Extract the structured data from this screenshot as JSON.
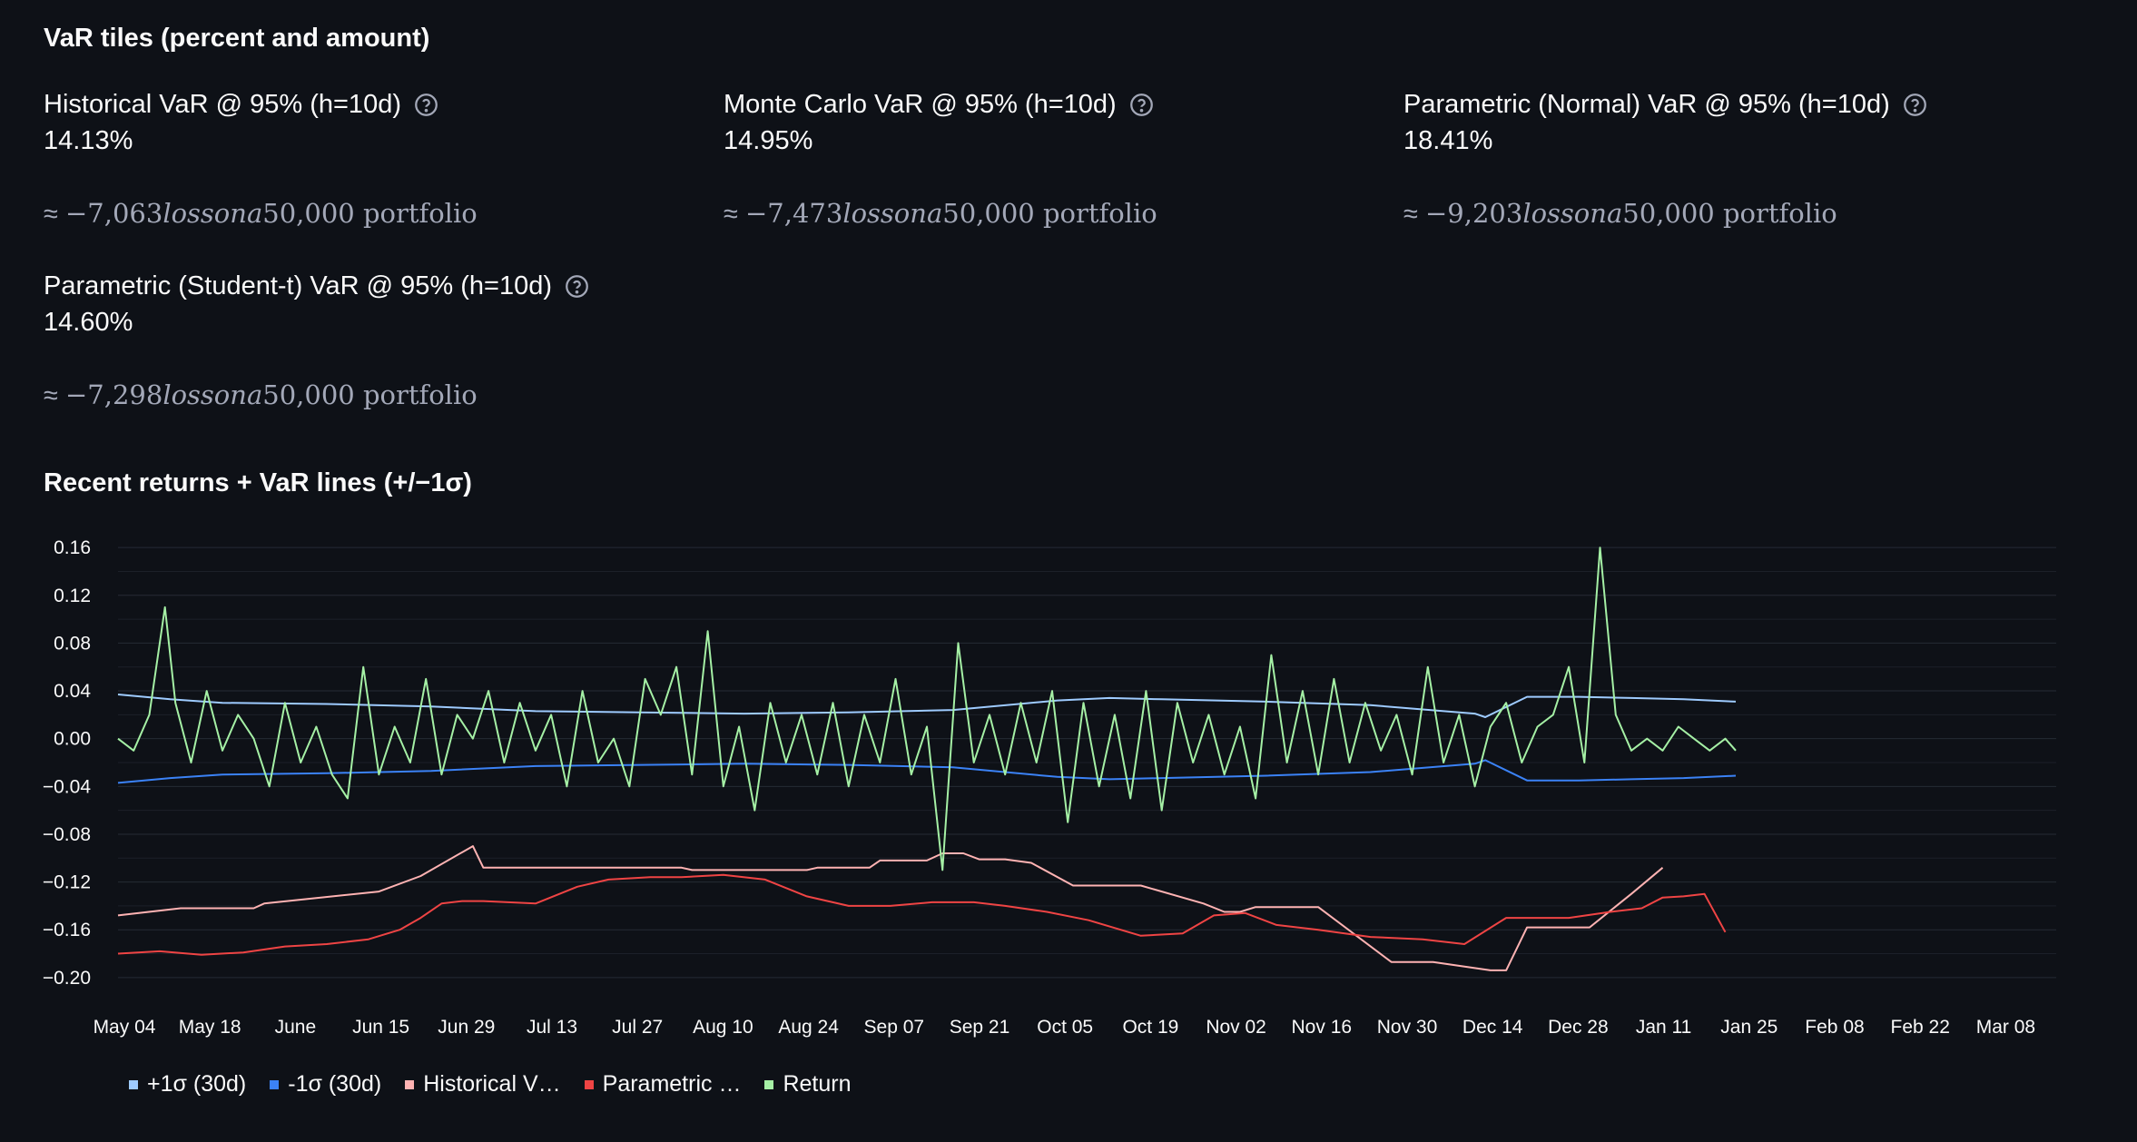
{
  "page": {
    "tiles_title": "VaR tiles (percent and amount)",
    "chart_title": "Recent returns + VaR lines (+/−1σ)"
  },
  "tiles": [
    {
      "label": "Historical VaR @ 95% (h=10d)",
      "value": "14.13%",
      "caption_prefix": "≈ ",
      "caption_math": "−7,063",
      "caption_italic": "lossona",
      "caption_suffix": "50,000 portfolio",
      "icon": "help-circle-icon"
    },
    {
      "label": "Monte Carlo VaR @ 95% (h=10d)",
      "value": "14.95%",
      "caption_prefix": "≈ ",
      "caption_math": "−7,473",
      "caption_italic": "lossona",
      "caption_suffix": "50,000 portfolio",
      "icon": "help-circle-icon"
    },
    {
      "label": "Parametric (Normal) VaR @ 95% (h=10d)",
      "value": "18.41%",
      "caption_prefix": "≈ ",
      "caption_math": "−9,203",
      "caption_italic": "lossona",
      "caption_suffix": "50,000 portfolio",
      "icon": "help-circle-icon"
    },
    {
      "label": "Parametric (Student-t) VaR @ 95% (h=10d)",
      "value": "14.60%",
      "caption_prefix": "≈ ",
      "caption_math": "−7,298",
      "caption_italic": "lossona",
      "caption_suffix": "50,000 portfolio",
      "icon": "help-circle-icon"
    }
  ],
  "chart_data": {
    "type": "line",
    "title": "",
    "xlabel": "",
    "ylabel": "",
    "x_ticks": [
      "May 04",
      "May 18",
      "June",
      "Jun 15",
      "Jun 29",
      "Jul 13",
      "Jul 27",
      "Aug 10",
      "Aug 24",
      "Sep 07",
      "Sep 21",
      "Oct 05",
      "Oct 19",
      "Nov 02",
      "Nov 16",
      "Nov 30",
      "Dec 14",
      "Dec 28",
      "Jan 11",
      "Jan 25",
      "Feb 08",
      "Feb 22",
      "Mar 08"
    ],
    "y_ticks": [
      "0.16",
      "0.12",
      "0.08",
      "0.04",
      "0.00",
      "−0.04",
      "−0.08",
      "−0.12",
      "−0.16",
      "−0.20"
    ],
    "y_tick_values": [
      0.16,
      0.12,
      0.08,
      0.04,
      0.0,
      -0.04,
      -0.08,
      -0.12,
      -0.16,
      -0.2
    ],
    "ylim": [
      -0.21,
      0.17
    ],
    "x_domain": [
      0,
      310
    ],
    "grid": true,
    "legend_position": "bottom-left",
    "series": [
      {
        "name": "+1σ (30d)",
        "legend_label": "+1σ (30d)",
        "color": "#9ecbff",
        "x": [
          0,
          10,
          20,
          40,
          60,
          80,
          100,
          120,
          140,
          160,
          180,
          190,
          200,
          220,
          240,
          260,
          262,
          270,
          280,
          290,
          300,
          310
        ],
        "values": [
          0.037,
          0.033,
          0.03,
          0.029,
          0.027,
          0.023,
          0.022,
          0.021,
          0.022,
          0.024,
          0.032,
          0.034,
          0.033,
          0.031,
          0.028,
          0.021,
          0.018,
          0.035,
          0.035,
          0.034,
          0.033,
          0.031
        ]
      },
      {
        "name": "-1σ (30d)",
        "legend_label": "-1σ (30d)",
        "color": "#3b82f6",
        "x": [
          0,
          10,
          20,
          40,
          60,
          80,
          100,
          120,
          140,
          160,
          180,
          190,
          200,
          220,
          240,
          260,
          262,
          270,
          280,
          290,
          300,
          310
        ],
        "values": [
          -0.037,
          -0.033,
          -0.03,
          -0.029,
          -0.027,
          -0.023,
          -0.022,
          -0.021,
          -0.022,
          -0.024,
          -0.032,
          -0.034,
          -0.033,
          -0.031,
          -0.028,
          -0.021,
          -0.018,
          -0.035,
          -0.035,
          -0.034,
          -0.033,
          -0.031
        ]
      },
      {
        "name": "Historical VaR",
        "legend_label": "Historical V…",
        "color": "#ffb3b3",
        "x": [
          0,
          12,
          26,
          28,
          50,
          58,
          68,
          70,
          108,
          110,
          122,
          132,
          134,
          144,
          146,
          155,
          158,
          162,
          165,
          170,
          175,
          183,
          196,
          208,
          212,
          215,
          218,
          230,
          244,
          246,
          252,
          263,
          266,
          270,
          272,
          276,
          282,
          290,
          296
        ],
        "values": [
          -0.148,
          -0.142,
          -0.142,
          -0.138,
          -0.128,
          -0.115,
          -0.09,
          -0.108,
          -0.108,
          -0.11,
          -0.11,
          -0.11,
          -0.108,
          -0.108,
          -0.102,
          -0.102,
          -0.096,
          -0.096,
          -0.101,
          -0.101,
          -0.104,
          -0.123,
          -0.123,
          -0.138,
          -0.145,
          -0.145,
          -0.141,
          -0.141,
          -0.187,
          -0.187,
          -0.187,
          -0.194,
          -0.194,
          -0.158,
          -0.158,
          -0.158,
          -0.158,
          -0.13,
          -0.108
        ]
      },
      {
        "name": "Parametric VaR",
        "legend_label": "Parametric …",
        "color": "#ef4444",
        "x": [
          0,
          8,
          16,
          24,
          32,
          40,
          48,
          54,
          58,
          62,
          66,
          70,
          80,
          88,
          94,
          102,
          108,
          116,
          124,
          132,
          140,
          148,
          156,
          164,
          170,
          178,
          186,
          196,
          204,
          210,
          216,
          222,
          230,
          240,
          250,
          258,
          266,
          272,
          278,
          286,
          292,
          296,
          300,
          304,
          308
        ],
        "values": [
          -0.18,
          -0.178,
          -0.181,
          -0.179,
          -0.174,
          -0.172,
          -0.168,
          -0.16,
          -0.15,
          -0.138,
          -0.136,
          -0.136,
          -0.138,
          -0.124,
          -0.118,
          -0.116,
          -0.116,
          -0.114,
          -0.118,
          -0.132,
          -0.14,
          -0.14,
          -0.137,
          -0.137,
          -0.14,
          -0.145,
          -0.152,
          -0.165,
          -0.163,
          -0.148,
          -0.146,
          -0.156,
          -0.16,
          -0.166,
          -0.168,
          -0.172,
          -0.15,
          -0.15,
          -0.15,
          -0.145,
          -0.142,
          -0.133,
          -0.132,
          -0.13,
          -0.162
        ]
      },
      {
        "name": "Return",
        "legend_label": "Return",
        "color": "#a5f0a5",
        "x": [
          0,
          3,
          6,
          9,
          11,
          14,
          17,
          20,
          23,
          26,
          29,
          32,
          35,
          38,
          41,
          44,
          47,
          50,
          53,
          56,
          59,
          62,
          65,
          68,
          71,
          74,
          77,
          80,
          83,
          86,
          89,
          92,
          95,
          98,
          101,
          104,
          107,
          110,
          113,
          116,
          119,
          122,
          125,
          128,
          131,
          134,
          137,
          140,
          143,
          146,
          149,
          152,
          155,
          158,
          161,
          164,
          167,
          170,
          173,
          176,
          179,
          182,
          185,
          188,
          191,
          194,
          197,
          200,
          203,
          206,
          209,
          212,
          215,
          218,
          221,
          224,
          227,
          230,
          233,
          236,
          239,
          242,
          245,
          248,
          251,
          254,
          257,
          260,
          263,
          266,
          269,
          272,
          275,
          278,
          281,
          284,
          287,
          290,
          293,
          296,
          299,
          302,
          305,
          308,
          310
        ],
        "values": [
          0.0,
          -0.01,
          0.02,
          0.11,
          0.03,
          -0.02,
          0.04,
          -0.01,
          0.02,
          0.0,
          -0.04,
          0.03,
          -0.02,
          0.01,
          -0.03,
          -0.05,
          0.06,
          -0.03,
          0.01,
          -0.02,
          0.05,
          -0.03,
          0.02,
          0.0,
          0.04,
          -0.02,
          0.03,
          -0.01,
          0.02,
          -0.04,
          0.04,
          -0.02,
          0.0,
          -0.04,
          0.05,
          0.02,
          0.06,
          -0.03,
          0.09,
          -0.04,
          0.01,
          -0.06,
          0.03,
          -0.02,
          0.02,
          -0.03,
          0.03,
          -0.04,
          0.02,
          -0.02,
          0.05,
          -0.03,
          0.01,
          -0.11,
          0.08,
          -0.02,
          0.02,
          -0.03,
          0.03,
          -0.02,
          0.04,
          -0.07,
          0.03,
          -0.04,
          0.02,
          -0.05,
          0.04,
          -0.06,
          0.03,
          -0.02,
          0.02,
          -0.03,
          0.01,
          -0.05,
          0.07,
          -0.02,
          0.04,
          -0.03,
          0.05,
          -0.02,
          0.03,
          -0.01,
          0.02,
          -0.03,
          0.06,
          -0.02,
          0.02,
          -0.04,
          0.01,
          0.03,
          -0.02,
          0.01,
          0.02,
          0.06,
          -0.02,
          0.16,
          0.02,
          -0.01,
          0.0,
          -0.01,
          0.01,
          0.0,
          -0.01,
          0.0,
          -0.01
        ]
      }
    ]
  }
}
